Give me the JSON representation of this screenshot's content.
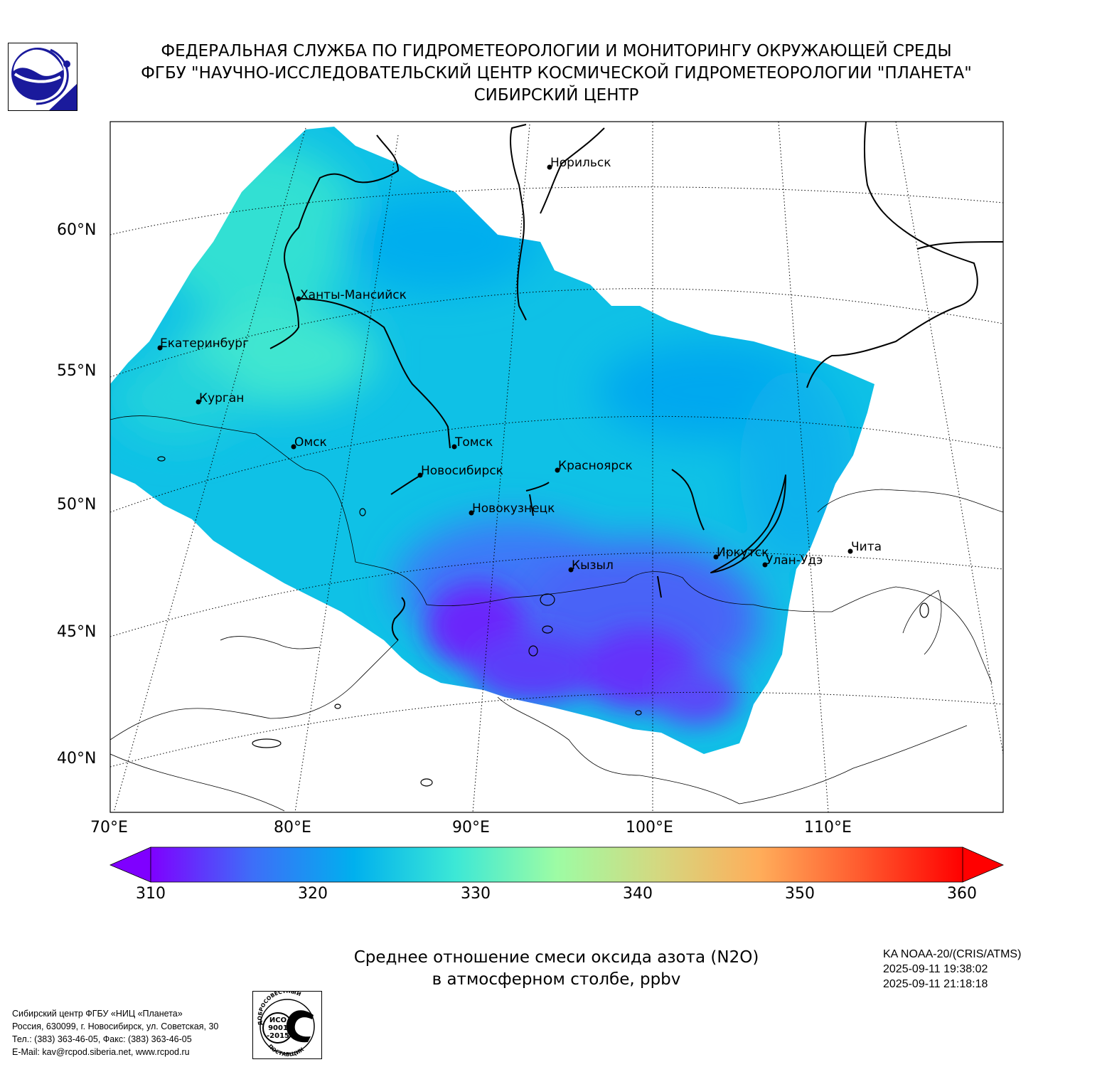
{
  "header": {
    "line1": "ФЕДЕРАЛЬНАЯ СЛУЖБА ПО ГИДРОМЕТЕОРОЛОГИИ И МОНИТОРИНГУ ОКРУЖАЮЩЕЙ СРЕДЫ",
    "line2": "ФГБУ \"НАУЧНО-ИССЛЕДОВАТЕЛЬСКИЙ ЦЕНТР КОСМИЧЕСКОЙ ГИДРОМЕТЕОРОЛОГИИ \"ПЛАНЕТА\"",
    "line3": "СИБИРСКИЙ ЦЕНТР"
  },
  "map": {
    "lat_labels": [
      "60°N",
      "55°N",
      "50°N",
      "45°N",
      "40°N"
    ],
    "lon_labels": [
      "70°E",
      "80°E",
      "90°E",
      "100°E",
      "110°E"
    ],
    "cities": [
      {
        "name": "Норильск"
      },
      {
        "name": "Ханты-Мансийск"
      },
      {
        "name": "Екатеринбург"
      },
      {
        "name": "Курган"
      },
      {
        "name": "Омск"
      },
      {
        "name": "Томск"
      },
      {
        "name": "Новосибирск"
      },
      {
        "name": "Красноярск"
      },
      {
        "name": "Новокузнецк"
      },
      {
        "name": "Иркутск"
      },
      {
        "name": "Улан-Удэ"
      },
      {
        "name": "Чита"
      },
      {
        "name": "Кызыл"
      }
    ]
  },
  "colorbar": {
    "ticks": [
      "310",
      "320",
      "330",
      "340",
      "350",
      "360"
    ],
    "colors": [
      "#7f00ff",
      "#3e6ef8",
      "#00b0ee",
      "#3ce8d6",
      "#9dfca4",
      "#d4d880",
      "#ffad5a",
      "#ff5a2e",
      "#ff0000"
    ]
  },
  "title": {
    "line1": "Среднее отношение смеси оксида азота (N2O)",
    "line2": "в атмосферном столбе, ppbv"
  },
  "satellite": {
    "name": "KA NOAA-20/(CRIS/ATMS)",
    "time_start": "2025-09-11 19:38:02",
    "time_end": "2025-09-11 21:18:18"
  },
  "footer": {
    "line1": "Сибирский центр ФГБУ «НИЦ «Планета»",
    "line2": "Россия, 630099, г. Новосибирск, ул. Советская, 30",
    "line3": "Тел.: (383) 363-46-05, Факс: (383) 363-46-05",
    "line4": "E-Mail: kav@rcpod.siberia.net, www.rcpod.ru"
  },
  "iso_badge": {
    "top_text": "ДОБРОСОВЕСТНЫЙ",
    "line1": "ИСО",
    "line2": "9001",
    "line3": "-2015",
    "bottom_text": "ПОСТАВЩИК"
  }
}
